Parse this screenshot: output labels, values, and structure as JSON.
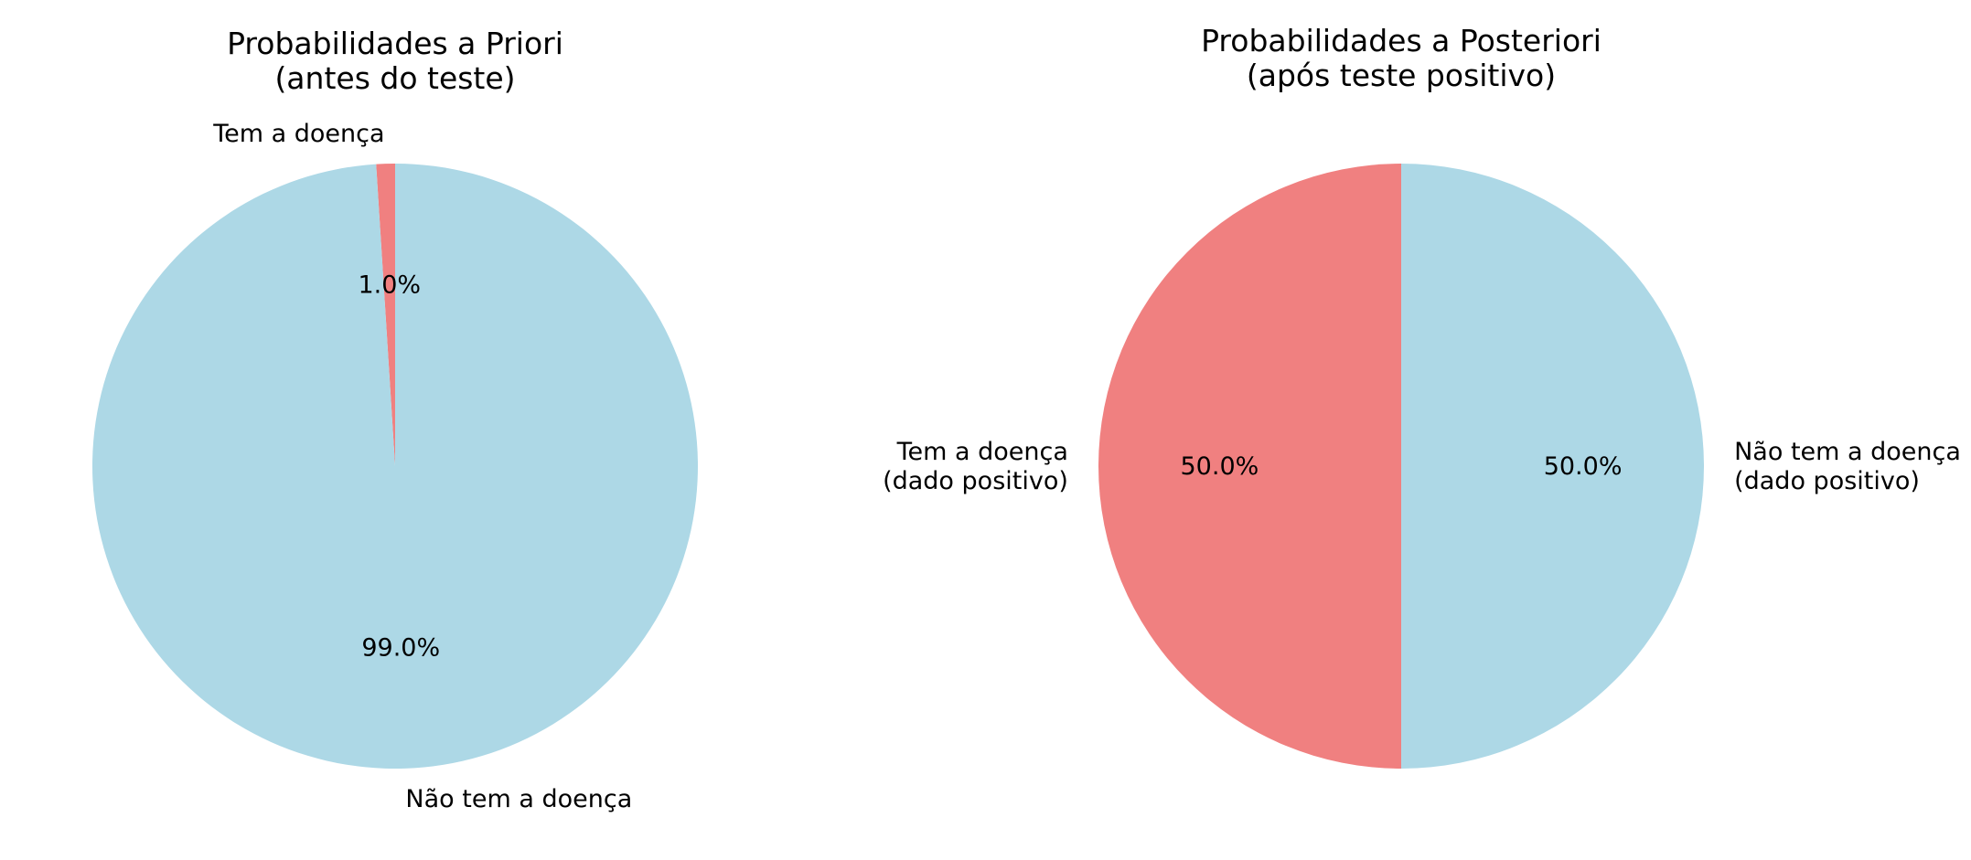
{
  "chart_data": [
    {
      "type": "pie",
      "title": "Probabilidades a Priori\n(antes do teste)",
      "start_angle": 90,
      "direction": "counterclockwise",
      "slices": [
        {
          "label": "Tem a doença",
          "value": 1.0,
          "pct_label": "1.0%",
          "color": "#F08080"
        },
        {
          "label": "Não tem a doença",
          "value": 99.0,
          "pct_label": "99.0%",
          "color": "#ADD8E6"
        }
      ]
    },
    {
      "type": "pie",
      "title": "Probabilidades a Posteriori\n(após teste positivo)",
      "start_angle": 90,
      "direction": "counterclockwise",
      "slices": [
        {
          "label": "Tem a doença\n(dado positivo)",
          "value": 50.0,
          "pct_label": "50.0%",
          "color": "#F08080"
        },
        {
          "label": "Não tem a doença\n(dado positivo)",
          "value": 50.0,
          "pct_label": "50.0%",
          "color": "#ADD8E6"
        }
      ]
    }
  ]
}
